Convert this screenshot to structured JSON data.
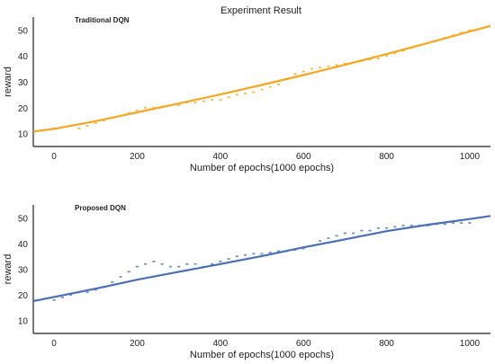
{
  "figure": {
    "title": "Experiment Result"
  },
  "chart_data": [
    {
      "type": "scatter",
      "annotation": "Traditional DQN",
      "xlabel": "Number of epochs(1000 epochs)",
      "ylabel": "reward",
      "xlim": [
        -50,
        1050
      ],
      "ylim": [
        5,
        55
      ],
      "xticks": [
        "0",
        "200",
        "400",
        "600",
        "800",
        "1000"
      ],
      "yticks": [
        "10",
        "20",
        "30",
        "40",
        "50"
      ],
      "grid": false,
      "color": "#f5a623",
      "series": [
        {
          "kind": "scatter",
          "points": [
            [
              0,
              12
            ],
            [
              20,
              12.5
            ],
            [
              40,
              13
            ],
            [
              60,
              12
            ],
            [
              80,
              13
            ],
            [
              100,
              14
            ],
            [
              120,
              15
            ],
            [
              140,
              16
            ],
            [
              160,
              17
            ],
            [
              180,
              18
            ],
            [
              200,
              19
            ],
            [
              220,
              20
            ],
            [
              240,
              20
            ],
            [
              260,
              20.5
            ],
            [
              280,
              21
            ],
            [
              300,
              21
            ],
            [
              320,
              22
            ],
            [
              340,
              22
            ],
            [
              360,
              22.5
            ],
            [
              380,
              23
            ],
            [
              400,
              23
            ],
            [
              420,
              24
            ],
            [
              440,
              25
            ],
            [
              460,
              25.5
            ],
            [
              480,
              26
            ],
            [
              500,
              27
            ],
            [
              520,
              28
            ],
            [
              540,
              29
            ],
            [
              560,
              31
            ],
            [
              580,
              33
            ],
            [
              600,
              34
            ],
            [
              620,
              35
            ],
            [
              640,
              35.5
            ],
            [
              660,
              36
            ],
            [
              680,
              36.5
            ],
            [
              700,
              37
            ],
            [
              720,
              37.5
            ],
            [
              740,
              38
            ],
            [
              760,
              38.5
            ],
            [
              780,
              39
            ],
            [
              800,
              40
            ],
            [
              820,
              41
            ],
            [
              840,
              42
            ],
            [
              860,
              43
            ],
            [
              880,
              44
            ],
            [
              900,
              45
            ],
            [
              920,
              46
            ],
            [
              940,
              47
            ],
            [
              960,
              48
            ],
            [
              980,
              49
            ],
            [
              1000,
              50
            ]
          ]
        },
        {
          "kind": "line",
          "x": [
            -50,
            0,
            100,
            200,
            300,
            400,
            500,
            600,
            700,
            800,
            900,
            1000,
            1050
          ],
          "y": [
            10.8,
            11.8,
            14.8,
            18.2,
            21.6,
            25.1,
            28.8,
            32.6,
            36.6,
            40.7,
            45.0,
            49.4,
            51.6
          ]
        }
      ]
    },
    {
      "type": "scatter",
      "annotation": "Proposed DQN",
      "xlabel": "Number of epochs(1000 epochs)",
      "ylabel": "reward",
      "xlim": [
        -50,
        1050
      ],
      "ylim": [
        5,
        55
      ],
      "xticks": [
        "0",
        "200",
        "400",
        "600",
        "800",
        "1000"
      ],
      "yticks": [
        "10",
        "20",
        "30",
        "40",
        "50"
      ],
      "grid": false,
      "color": "#4a6fb5",
      "series": [
        {
          "kind": "scatter",
          "points": [
            [
              0,
              18
            ],
            [
              20,
              19
            ],
            [
              40,
              20
            ],
            [
              60,
              21
            ],
            [
              80,
              21
            ],
            [
              100,
              22
            ],
            [
              120,
              23
            ],
            [
              140,
              25
            ],
            [
              160,
              27
            ],
            [
              180,
              29
            ],
            [
              200,
              31
            ],
            [
              220,
              32
            ],
            [
              240,
              33
            ],
            [
              260,
              32
            ],
            [
              280,
              31
            ],
            [
              300,
              31
            ],
            [
              320,
              32
            ],
            [
              340,
              32
            ],
            [
              360,
              31
            ],
            [
              380,
              32
            ],
            [
              400,
              33
            ],
            [
              420,
              34
            ],
            [
              440,
              35
            ],
            [
              460,
              35.5
            ],
            [
              480,
              36
            ],
            [
              500,
              36
            ],
            [
              520,
              36.5
            ],
            [
              540,
              37
            ],
            [
              560,
              37
            ],
            [
              580,
              37.5
            ],
            [
              600,
              38
            ],
            [
              620,
              39
            ],
            [
              640,
              41
            ],
            [
              660,
              42
            ],
            [
              680,
              43
            ],
            [
              700,
              44
            ],
            [
              720,
              44
            ],
            [
              740,
              45
            ],
            [
              760,
              45
            ],
            [
              780,
              46
            ],
            [
              800,
              46
            ],
            [
              820,
              46.5
            ],
            [
              840,
              47
            ],
            [
              860,
              47
            ],
            [
              880,
              47
            ],
            [
              900,
              47
            ],
            [
              920,
              47.5
            ],
            [
              940,
              47.5
            ],
            [
              960,
              48
            ],
            [
              980,
              48
            ],
            [
              1000,
              48
            ]
          ]
        },
        {
          "kind": "line",
          "x": [
            -50,
            0,
            100,
            200,
            300,
            400,
            500,
            600,
            700,
            800,
            900,
            1000,
            1050
          ],
          "y": [
            17.6,
            19.2,
            22.4,
            25.9,
            29.0,
            32.0,
            35.1,
            38.5,
            41.6,
            44.8,
            47.3,
            49.5,
            50.7
          ]
        }
      ]
    }
  ]
}
